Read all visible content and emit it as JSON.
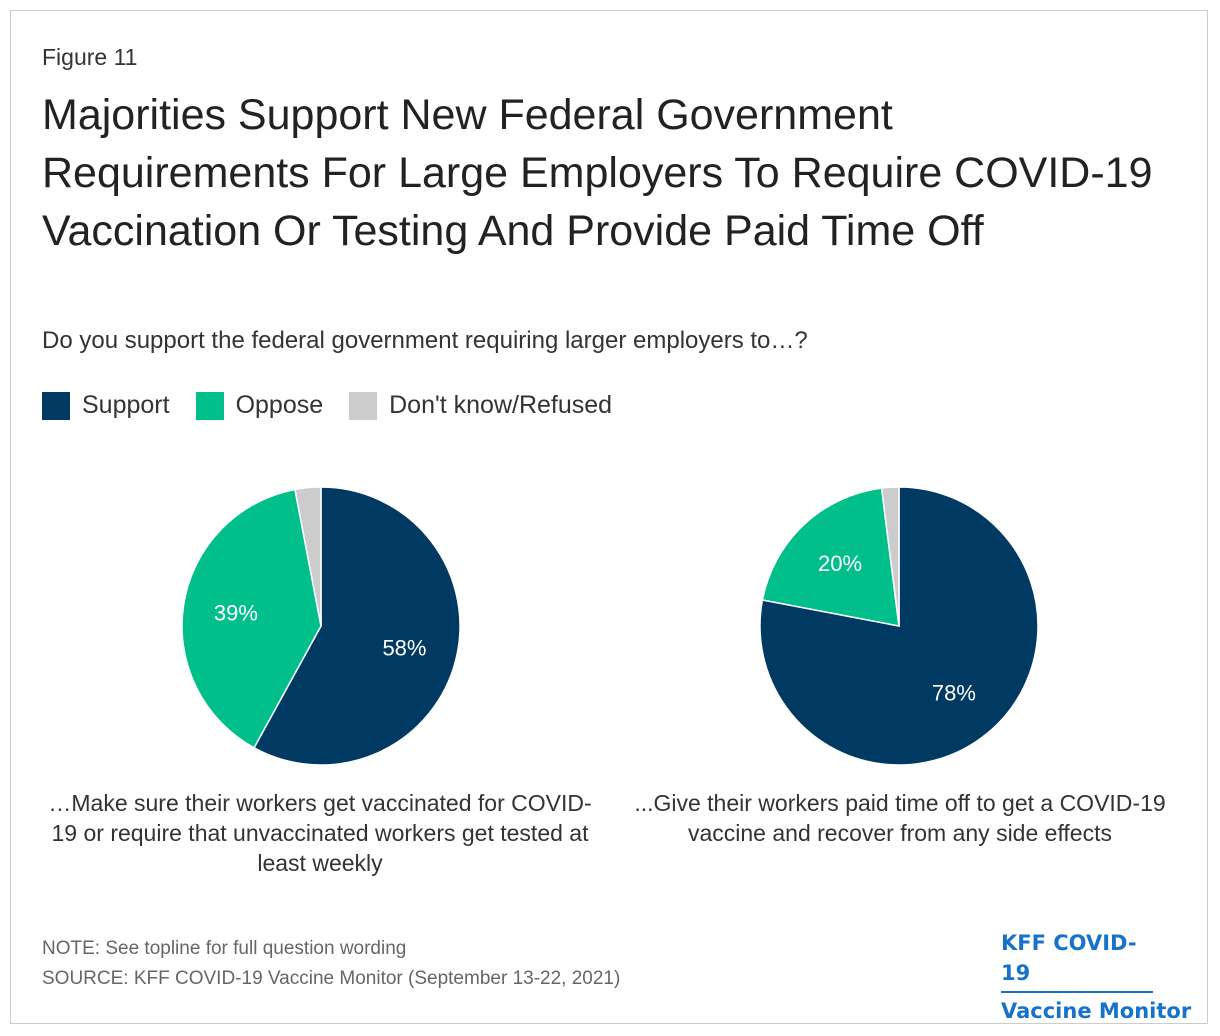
{
  "figure_label": "Figure 11",
  "title": "Majorities Support New Federal Government Requirements For Large Employers To Require COVID-19 Vaccination Or Testing And Provide Paid Time Off",
  "subtitle": "Do you support the federal government requiring larger employers to…?",
  "legend": [
    {
      "label": "Support",
      "color": "#003a63"
    },
    {
      "label": "Oppose",
      "color": "#00bf8b"
    },
    {
      "label": "Don't know/Refused",
      "color": "#cccccc"
    }
  ],
  "chart_data": [
    {
      "type": "pie",
      "caption": "…Make sure their workers get vaccinated for COVID-19 or require that unvaccinated workers get tested at least weekly",
      "slices": [
        {
          "label": "Support",
          "value": 58,
          "display": "58%",
          "color": "#003a63"
        },
        {
          "label": "Oppose",
          "value": 39,
          "display": "39%",
          "color": "#00bf8b"
        },
        {
          "label": "Don't know/Refused",
          "value": 3,
          "display": "",
          "color": "#cccccc"
        }
      ]
    },
    {
      "type": "pie",
      "caption": "...Give their workers paid time off to get a COVID-19 vaccine and recover from any side effects",
      "slices": [
        {
          "label": "Support",
          "value": 78,
          "display": "78%",
          "color": "#003a63"
        },
        {
          "label": "Oppose",
          "value": 20,
          "display": "20%",
          "color": "#00bf8b"
        },
        {
          "label": "Don't know/Refused",
          "value": 2,
          "display": "",
          "color": "#cccccc"
        }
      ]
    }
  ],
  "note": "NOTE: See topline for full question wording",
  "source": "SOURCE: KFF COVID-19 Vaccine Monitor (September 13-22, 2021)",
  "brand": {
    "line1": "KFF COVID-19",
    "line2": "Vaccine Monitor"
  }
}
